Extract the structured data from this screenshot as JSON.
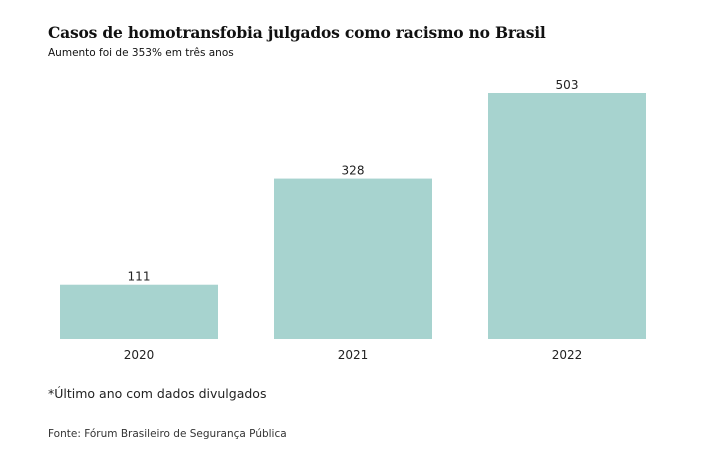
{
  "chart_data": {
    "type": "bar",
    "title": "Casos de homotransfobia julgados como racismo no Brasil",
    "subtitle": "Aumento foi de 353% em três anos",
    "categories": [
      "2020",
      "2021",
      "2022"
    ],
    "values": [
      111,
      328,
      503
    ],
    "xlabel": "",
    "ylabel": "",
    "ylim": [
      0,
      503
    ],
    "grid": false,
    "bar_color": "#a7d3cf"
  },
  "note": "*Último ano com dados divulgados",
  "source": "Fonte: Fórum Brasileiro de Segurança Pública"
}
